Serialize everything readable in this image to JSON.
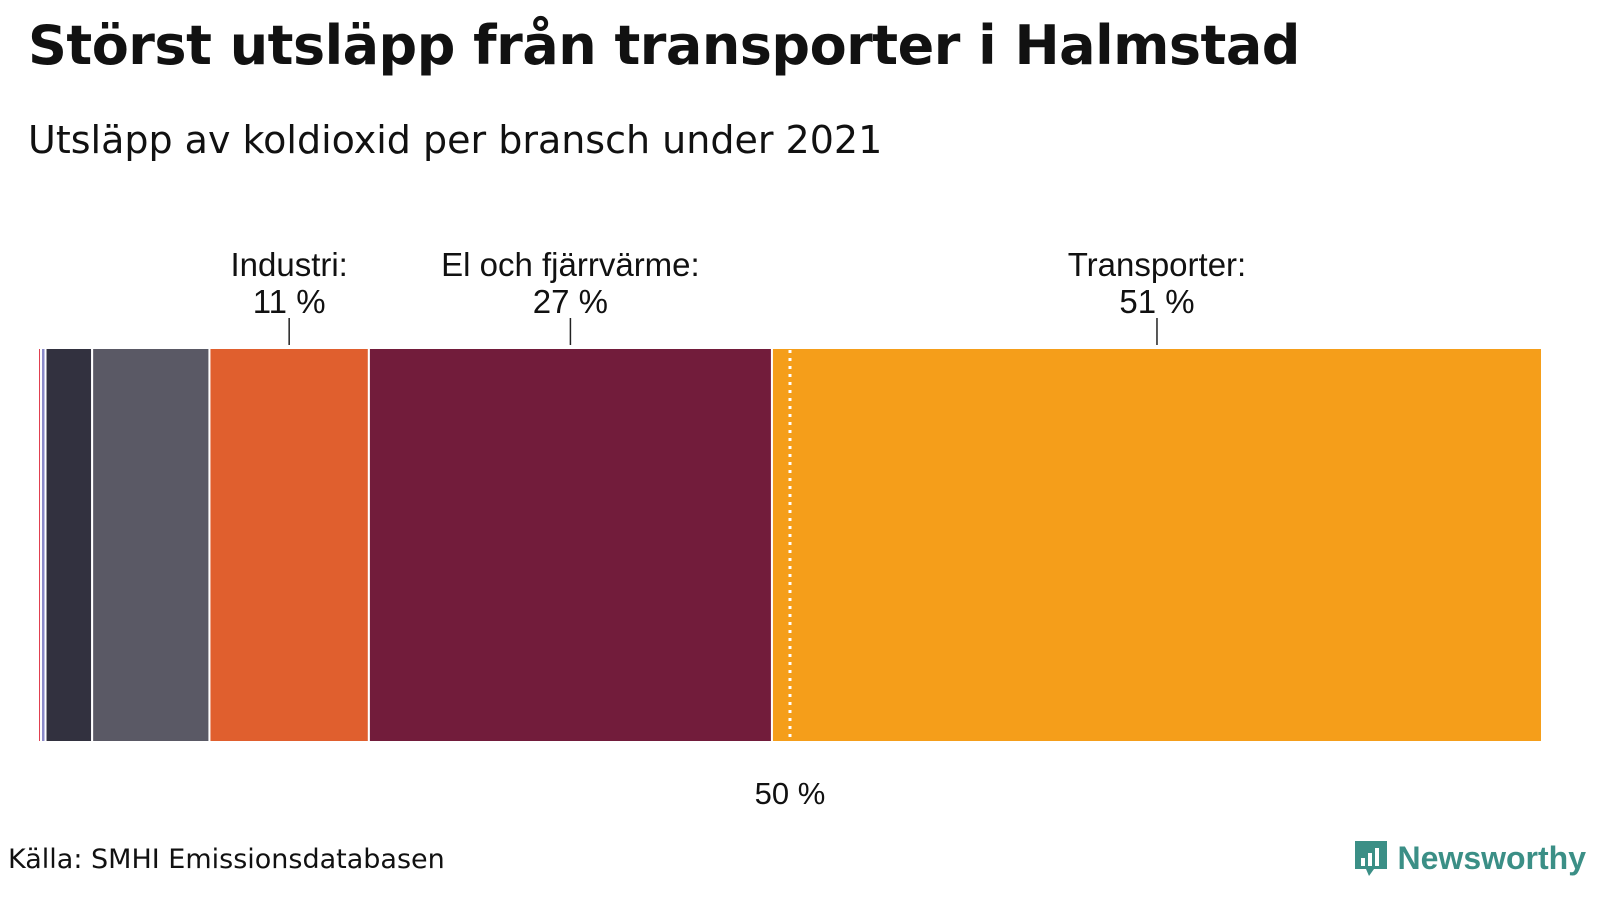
{
  "title": "Störst utsläpp från transporter i Halmstad",
  "subtitle": "Utsläpp av koldioxid per bransch under 2021",
  "source": "Källa: SMHI Emissionsdatabasen",
  "brand": "Newsworthy",
  "colors": {
    "brand": "#3b8f86"
  },
  "chart_data": {
    "type": "bar",
    "orientation": "horizontal-stacked",
    "unit": "%",
    "xlim": [
      0,
      100
    ],
    "reference_line": {
      "value": 50,
      "label": "50 %"
    },
    "segments": [
      {
        "value": 0.2,
        "color": "#e04050"
      },
      {
        "value": 0.3,
        "color": "#8a8ac8"
      },
      {
        "value": 3.1,
        "color": "#32313f"
      },
      {
        "value": 7.8,
        "color": "#5a5965"
      },
      {
        "value": 10.6,
        "name": "Industri:",
        "label": "11 %",
        "color": "#e05f2e"
      },
      {
        "value": 26.8,
        "name": "El och fjärrvärme:",
        "label": "27 %",
        "color": "#721c3b"
      },
      {
        "value": 51.2,
        "name": "Transporter:",
        "label": "51 %",
        "color": "#f59e1a"
      }
    ]
  }
}
